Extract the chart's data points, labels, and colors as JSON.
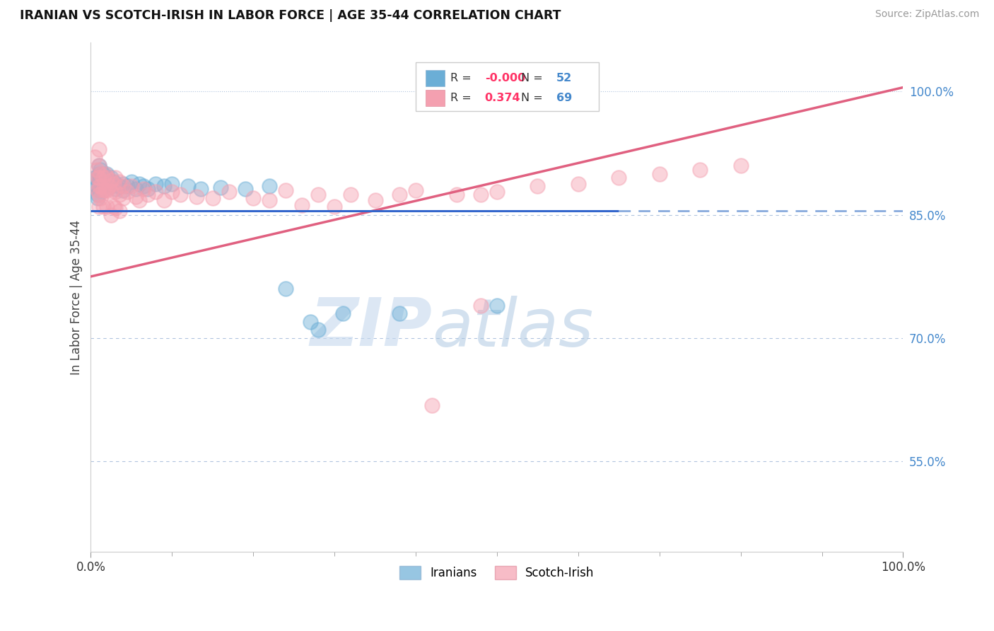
{
  "title": "IRANIAN VS SCOTCH-IRISH IN LABOR FORCE | AGE 35-44 CORRELATION CHART",
  "source_text": "Source: ZipAtlas.com",
  "ylabel": "In Labor Force | Age 35-44",
  "xlim": [
    0.0,
    1.0
  ],
  "ylim": [
    0.44,
    1.06
  ],
  "y_tick_labels": [
    "55.0%",
    "70.0%",
    "85.0%",
    "100.0%"
  ],
  "y_tick_values": [
    0.55,
    0.7,
    0.85,
    1.0
  ],
  "blue_color": "#6baed6",
  "pink_color": "#f4a0b0",
  "blue_r": "-0.000",
  "blue_n": "52",
  "pink_r": "0.374",
  "pink_n": "69",
  "watermark_zip": "ZIP",
  "watermark_atlas": "atlas",
  "blue_scatter": [
    [
      0.005,
      0.895
    ],
    [
      0.007,
      0.885
    ],
    [
      0.008,
      0.875
    ],
    [
      0.008,
      0.87
    ],
    [
      0.01,
      0.91
    ],
    [
      0.01,
      0.9
    ],
    [
      0.01,
      0.895
    ],
    [
      0.01,
      0.89
    ],
    [
      0.01,
      0.885
    ],
    [
      0.01,
      0.88
    ],
    [
      0.012,
      0.905
    ],
    [
      0.012,
      0.895
    ],
    [
      0.012,
      0.89
    ],
    [
      0.012,
      0.885
    ],
    [
      0.015,
      0.9
    ],
    [
      0.015,
      0.895
    ],
    [
      0.015,
      0.885
    ],
    [
      0.015,
      0.88
    ],
    [
      0.018,
      0.895
    ],
    [
      0.018,
      0.888
    ],
    [
      0.02,
      0.9
    ],
    [
      0.02,
      0.892
    ],
    [
      0.02,
      0.885
    ],
    [
      0.022,
      0.892
    ],
    [
      0.025,
      0.895
    ],
    [
      0.025,
      0.885
    ],
    [
      0.028,
      0.89
    ],
    [
      0.03,
      0.888
    ],
    [
      0.03,
      0.882
    ],
    [
      0.035,
      0.885
    ],
    [
      0.04,
      0.888
    ],
    [
      0.04,
      0.88
    ],
    [
      0.045,
      0.885
    ],
    [
      0.05,
      0.89
    ],
    [
      0.055,
      0.882
    ],
    [
      0.06,
      0.888
    ],
    [
      0.065,
      0.885
    ],
    [
      0.07,
      0.882
    ],
    [
      0.08,
      0.888
    ],
    [
      0.09,
      0.885
    ],
    [
      0.1,
      0.888
    ],
    [
      0.12,
      0.885
    ],
    [
      0.135,
      0.882
    ],
    [
      0.16,
      0.883
    ],
    [
      0.19,
      0.882
    ],
    [
      0.22,
      0.885
    ],
    [
      0.24,
      0.76
    ],
    [
      0.27,
      0.72
    ],
    [
      0.28,
      0.71
    ],
    [
      0.31,
      0.73
    ],
    [
      0.38,
      0.73
    ],
    [
      0.5,
      0.74
    ]
  ],
  "pink_scatter": [
    [
      0.005,
      0.92
    ],
    [
      0.007,
      0.905
    ],
    [
      0.008,
      0.895
    ],
    [
      0.008,
      0.88
    ],
    [
      0.01,
      0.93
    ],
    [
      0.01,
      0.91
    ],
    [
      0.01,
      0.895
    ],
    [
      0.01,
      0.885
    ],
    [
      0.01,
      0.875
    ],
    [
      0.01,
      0.86
    ],
    [
      0.012,
      0.9
    ],
    [
      0.012,
      0.885
    ],
    [
      0.012,
      0.87
    ],
    [
      0.015,
      0.895
    ],
    [
      0.015,
      0.88
    ],
    [
      0.015,
      0.86
    ],
    [
      0.018,
      0.9
    ],
    [
      0.018,
      0.88
    ],
    [
      0.02,
      0.895
    ],
    [
      0.02,
      0.88
    ],
    [
      0.02,
      0.86
    ],
    [
      0.022,
      0.885
    ],
    [
      0.025,
      0.892
    ],
    [
      0.025,
      0.878
    ],
    [
      0.025,
      0.85
    ],
    [
      0.028,
      0.888
    ],
    [
      0.028,
      0.86
    ],
    [
      0.03,
      0.895
    ],
    [
      0.03,
      0.878
    ],
    [
      0.03,
      0.858
    ],
    [
      0.035,
      0.89
    ],
    [
      0.035,
      0.875
    ],
    [
      0.035,
      0.855
    ],
    [
      0.04,
      0.885
    ],
    [
      0.04,
      0.87
    ],
    [
      0.045,
      0.878
    ],
    [
      0.05,
      0.885
    ],
    [
      0.055,
      0.872
    ],
    [
      0.06,
      0.868
    ],
    [
      0.065,
      0.882
    ],
    [
      0.07,
      0.875
    ],
    [
      0.08,
      0.878
    ],
    [
      0.09,
      0.868
    ],
    [
      0.1,
      0.878
    ],
    [
      0.11,
      0.875
    ],
    [
      0.13,
      0.872
    ],
    [
      0.15,
      0.87
    ],
    [
      0.17,
      0.878
    ],
    [
      0.2,
      0.87
    ],
    [
      0.22,
      0.868
    ],
    [
      0.24,
      0.88
    ],
    [
      0.26,
      0.862
    ],
    [
      0.28,
      0.875
    ],
    [
      0.3,
      0.86
    ],
    [
      0.32,
      0.875
    ],
    [
      0.35,
      0.868
    ],
    [
      0.38,
      0.875
    ],
    [
      0.4,
      0.88
    ],
    [
      0.42,
      0.618
    ],
    [
      0.45,
      0.875
    ],
    [
      0.48,
      0.875
    ],
    [
      0.5,
      0.878
    ],
    [
      0.55,
      0.885
    ],
    [
      0.6,
      0.888
    ],
    [
      0.65,
      0.895
    ],
    [
      0.7,
      0.9
    ],
    [
      0.75,
      0.905
    ],
    [
      0.8,
      0.91
    ],
    [
      0.48,
      0.74
    ]
  ],
  "blue_line_solid": [
    [
      0.0,
      0.855
    ],
    [
      0.65,
      0.855
    ]
  ],
  "blue_line_dashed": [
    [
      0.65,
      0.855
    ],
    [
      1.0,
      0.855
    ]
  ],
  "pink_line": [
    [
      0.0,
      0.775
    ],
    [
      1.0,
      1.005
    ]
  ],
  "top_dotted_line_y": 1.0,
  "background_color": "#ffffff",
  "grid_color_dotted": "#b0c4de",
  "grid_color_dashed": "#b0c4de",
  "label_color": "#4488cc",
  "r_color": "#ff3366",
  "n_color": "#4488cc"
}
